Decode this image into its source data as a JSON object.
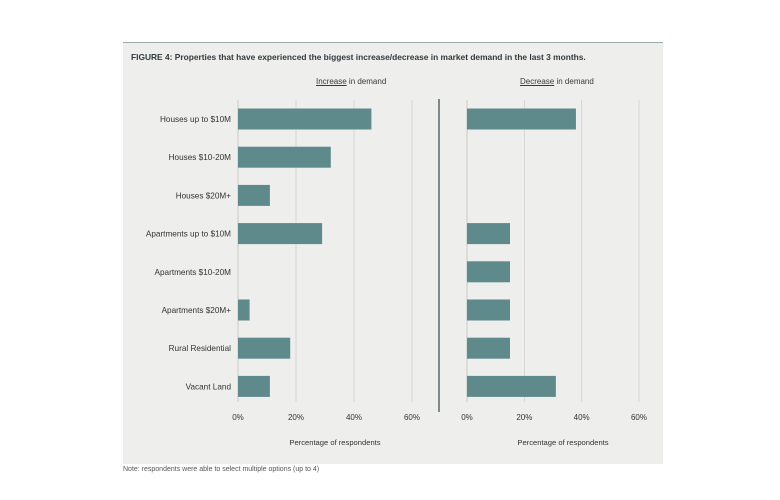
{
  "figure": {
    "title": "FIGURE 4: Properties that have experienced the biggest increase/decrease in market demand in the last 3 months.",
    "footnote": "Note: respondents were able to select multiple options (up to 4)"
  },
  "colors": {
    "bar": "#5f8a8b",
    "background": "#eeeeec",
    "grid": "#d0d0cc",
    "divider": "#445055"
  },
  "chart_data": [
    {
      "type": "bar",
      "orientation": "horizontal",
      "title_emphasis": "Increase",
      "title_rest": " in demand",
      "xlabel": "Percentage of respondents",
      "categories": [
        "Houses up to $10M",
        "Houses $10-20M",
        "Houses $20M+",
        "Apartments up to $10M",
        "Apartments $10-20M",
        "Apartments $20M+",
        "Rural Residential",
        "Vacant Land"
      ],
      "values": [
        46,
        32,
        11,
        29,
        0,
        4,
        18,
        11
      ],
      "xlim": [
        0,
        60
      ],
      "xticks": [
        0,
        20,
        40,
        60
      ],
      "tick_labels": [
        "0%",
        "20%",
        "40%",
        "60%"
      ],
      "grid": true
    },
    {
      "type": "bar",
      "orientation": "horizontal",
      "title_emphasis": "Decrease",
      "title_rest": " in demand",
      "xlabel": "Percentage of respondents",
      "categories": [
        "Houses up to $10M",
        "Houses $10-20M",
        "Houses $20M+",
        "Apartments up to $10M",
        "Apartments $10-20M",
        "Apartments $20M+",
        "Rural Residential",
        "Vacant Land"
      ],
      "values": [
        38,
        0,
        0,
        15,
        15,
        15,
        15,
        31
      ],
      "xlim": [
        0,
        60
      ],
      "xticks": [
        0,
        20,
        40,
        60
      ],
      "tick_labels": [
        "0%",
        "20%",
        "40%",
        "60%"
      ],
      "grid": true
    }
  ]
}
